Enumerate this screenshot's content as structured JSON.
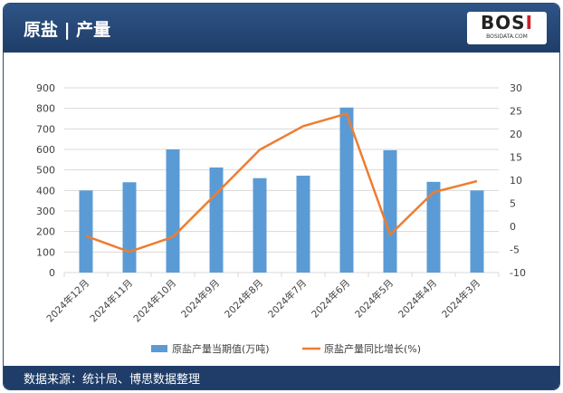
{
  "header": {
    "title": "原盐 | 产量",
    "logo_text": "BOSI",
    "logo_sub": "BOSIDATA.COM"
  },
  "footer": {
    "source": "数据来源：统计局、博思数据整理"
  },
  "chart_data": {
    "type": "bar+line",
    "categories": [
      "2024年12月",
      "2024年11月",
      "2024年10月",
      "2024年9月",
      "2024年8月",
      "2024年7月",
      "2024年6月",
      "2024年5月",
      "2024年4月",
      "2024年3月"
    ],
    "series": [
      {
        "name": "原盐产量当期值(万吨)",
        "type": "bar",
        "axis": "left",
        "color": "#5b9bd5",
        "values": [
          400,
          440,
          600,
          512,
          460,
          472,
          804,
          596,
          442,
          400
        ]
      },
      {
        "name": "原盐产量同比增长(%)",
        "type": "line",
        "axis": "right",
        "color": "#ed7d31",
        "values": [
          -2.1,
          -5.5,
          -2.3,
          7.1,
          16.6,
          21.7,
          24.4,
          -1.8,
          7.4,
          9.8
        ]
      }
    ],
    "y_left": {
      "min": 0,
      "max": 900,
      "ticks": [
        0,
        100,
        200,
        300,
        400,
        500,
        600,
        700,
        800,
        900
      ]
    },
    "y_right": {
      "min": -10,
      "max": 30,
      "ticks": [
        -10,
        -5,
        0,
        5,
        10,
        15,
        20,
        25,
        30
      ]
    },
    "grid": true,
    "legend": "bottom"
  }
}
